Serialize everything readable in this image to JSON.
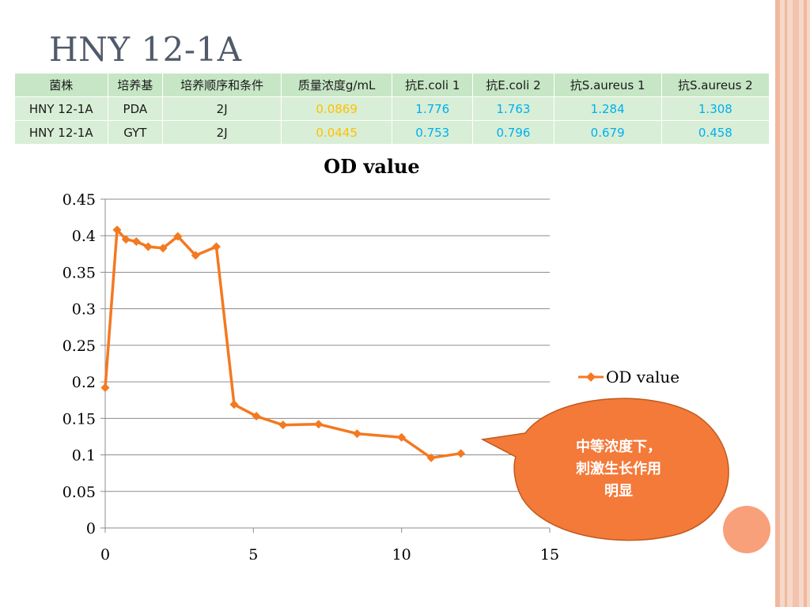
{
  "slide": {
    "title": "HNY 12-1A"
  },
  "table": {
    "headers": [
      "菌株",
      "培养基",
      "培养顺序和条件",
      "质量浓度g/mL",
      "抗E.coli 1",
      "抗E.coli 2",
      "抗S.aureus 1",
      "抗S.aureus 2"
    ],
    "rows": [
      [
        "HNY 12-1A",
        "PDA",
        "2J",
        "0.0869",
        "1.776",
        "1.763",
        "1.284",
        "1.308"
      ],
      [
        "HNY 12-1A",
        "GYT",
        "2J",
        "0.0445",
        "0.753",
        "0.796",
        "0.679",
        "0.458"
      ]
    ],
    "colors": {
      "header_bg": "#c6e6c5",
      "row_bg": "#d8eed6",
      "concentration": "#ffc000",
      "activity": "#00b0f0"
    }
  },
  "chart_data": {
    "type": "line",
    "title": "OD value",
    "xlabel": "",
    "ylabel": "",
    "xlim": [
      0,
      15
    ],
    "ylim": [
      0,
      0.45
    ],
    "x_ticks": [
      "0",
      "5",
      "10",
      "15"
    ],
    "y_ticks": [
      "0",
      "0.05",
      "0.1",
      "0.15",
      "0.2",
      "0.25",
      "0.3",
      "0.35",
      "0.4",
      "0.45"
    ],
    "grid": true,
    "legend_position": "right",
    "series": [
      {
        "name": "OD value",
        "color": "#f47920",
        "marker": "diamond",
        "x": [
          0,
          0.4,
          0.7,
          1.05,
          1.45,
          1.95,
          2.45,
          3.05,
          3.75,
          4.35,
          5.1,
          6.0,
          7.2,
          8.5,
          10.0,
          11.0,
          12.0
        ],
        "y": [
          0.192,
          0.408,
          0.395,
          0.392,
          0.385,
          0.383,
          0.399,
          0.373,
          0.385,
          0.169,
          0.153,
          0.141,
          0.142,
          0.129,
          0.124,
          0.096,
          0.102
        ]
      }
    ]
  },
  "callout": {
    "lines": [
      "中等浓度下，",
      "刺激生长作用",
      "明显"
    ],
    "fill": "#f47a3a"
  }
}
